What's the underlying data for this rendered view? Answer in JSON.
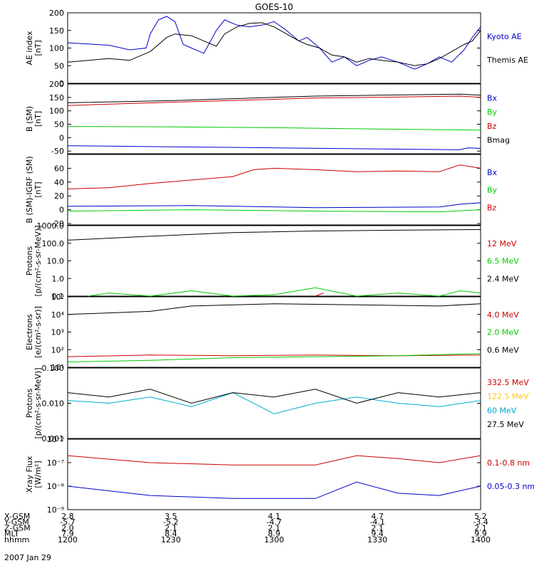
{
  "title": "GOES-10",
  "date_label": "2007 Jan 29",
  "chart_data": [
    {
      "type": "line",
      "id": "ae",
      "ylabel": [
        "AE index",
        "[nT]"
      ],
      "yscale": "linear",
      "ylim": [
        0,
        200
      ],
      "yticks": [
        0,
        50,
        100,
        150,
        200
      ],
      "ytick_labels": [
        "0",
        "50",
        "100",
        "150",
        "200"
      ],
      "series": [
        {
          "name": "Kyoto AE",
          "color": "#0000cc",
          "x": [
            0,
            0.1,
            0.15,
            0.19,
            0.2,
            0.22,
            0.24,
            0.26,
            0.28,
            0.3,
            0.33,
            0.36,
            0.38,
            0.41,
            0.44,
            0.47,
            0.5,
            0.53,
            0.56,
            0.58,
            0.61,
            0.64,
            0.67,
            0.7,
            0.73,
            0.76,
            0.8,
            0.84,
            0.87,
            0.9,
            0.93,
            0.96,
            0.98,
            1
          ],
          "values": [
            115,
            108,
            95,
            100,
            140,
            180,
            190,
            175,
            110,
            100,
            85,
            150,
            180,
            165,
            160,
            165,
            175,
            150,
            120,
            130,
            100,
            60,
            75,
            50,
            65,
            75,
            60,
            40,
            55,
            75,
            60,
            95,
            130,
            160
          ]
        },
        {
          "name": "Themis AE",
          "color": "#000000",
          "x": [
            0,
            0.1,
            0.15,
            0.2,
            0.24,
            0.26,
            0.3,
            0.33,
            0.36,
            0.38,
            0.41,
            0.44,
            0.47,
            0.5,
            0.53,
            0.56,
            0.58,
            0.61,
            0.64,
            0.67,
            0.7,
            0.73,
            0.76,
            0.8,
            0.84,
            0.87,
            0.9,
            0.93,
            0.96,
            0.98,
            1
          ],
          "values": [
            60,
            70,
            65,
            90,
            130,
            140,
            135,
            120,
            105,
            140,
            160,
            170,
            172,
            160,
            140,
            120,
            110,
            100,
            80,
            75,
            60,
            70,
            65,
            60,
            50,
            55,
            70,
            90,
            110,
            120,
            150
          ]
        }
      ],
      "legend": [
        "Kyoto AE",
        "Themis AE"
      ]
    },
    {
      "type": "line",
      "id": "b_sm",
      "ylabel": [
        "B (SM)",
        "[nT]"
      ],
      "yscale": "linear",
      "ylim": [
        -60,
        200
      ],
      "yticks": [
        -50,
        0,
        50,
        100,
        150,
        200
      ],
      "ytick_labels": [
        "-50",
        "0",
        "50",
        "100",
        "150",
        "200"
      ],
      "series": [
        {
          "name": "Bx",
          "color": "#0000cc",
          "x": [
            0,
            0.25,
            0.5,
            0.75,
            0.95,
            0.97,
            1
          ],
          "values": [
            -30,
            -34,
            -38,
            -42,
            -45,
            -38,
            -40
          ]
        },
        {
          "name": "By",
          "color": "#00cc00",
          "x": [
            0,
            0.25,
            0.5,
            0.75,
            1
          ],
          "values": [
            42,
            40,
            37,
            32,
            28
          ]
        },
        {
          "name": "Bz",
          "color": "#cc0000",
          "x": [
            0,
            0.25,
            0.5,
            0.6,
            0.75,
            0.95,
            1
          ],
          "values": [
            120,
            132,
            143,
            148,
            150,
            155,
            150
          ]
        },
        {
          "name": "Bmag",
          "color": "#000000",
          "x": [
            0,
            0.25,
            0.5,
            0.6,
            0.75,
            0.95,
            1
          ],
          "values": [
            130,
            138,
            150,
            155,
            158,
            162,
            158
          ]
        }
      ],
      "legend": [
        "Bx",
        "By",
        "Bz",
        "Bmag"
      ]
    },
    {
      "type": "line",
      "id": "b_minus_igrf",
      "ylabel": [
        "B (SM)-IGRF (SM)",
        "[nT]"
      ],
      "yscale": "linear",
      "ylim": [
        -22,
        80
      ],
      "yticks": [
        -20,
        0,
        20,
        40,
        60
      ],
      "ytick_labels": [
        "-20",
        "0",
        "20",
        "40",
        "60"
      ],
      "series": [
        {
          "name": "Bx",
          "color": "#0000cc",
          "x": [
            0,
            0.3,
            0.6,
            0.9,
            0.95,
            1
          ],
          "values": [
            5,
            6,
            3,
            4,
            8,
            10
          ]
        },
        {
          "name": "By",
          "color": "#00cc00",
          "x": [
            0,
            0.3,
            0.6,
            0.9,
            1
          ],
          "values": [
            -2,
            0,
            -2,
            -3,
            0
          ]
        },
        {
          "name": "Bz",
          "color": "#cc0000",
          "x": [
            0,
            0.1,
            0.2,
            0.3,
            0.4,
            0.45,
            0.5,
            0.6,
            0.7,
            0.8,
            0.9,
            0.95,
            1
          ],
          "values": [
            30,
            32,
            38,
            43,
            48,
            58,
            60,
            58,
            55,
            56,
            55,
            65,
            60
          ]
        }
      ],
      "legend": [
        "Bx",
        "By",
        "Bz"
      ]
    },
    {
      "type": "line",
      "id": "protons_low",
      "ylabel": [
        "Protons",
        "[p/(cm²-s-sr-MeV)]"
      ],
      "yscale": "log",
      "ylim": [
        0.1,
        1000
      ],
      "yticks": [
        0.1,
        1,
        10,
        100,
        1000
      ],
      "ytick_labels": [
        "0.1",
        "1.0",
        "10.0",
        "100.0",
        "1000.0"
      ],
      "series": [
        {
          "name": "12 MeV",
          "color": "#cc0000",
          "x": [
            0.6,
            0.62
          ],
          "values": [
            0.1,
            0.15
          ]
        },
        {
          "name": "6.5 MeV",
          "color": "#00cc00",
          "x": [
            0.05,
            0.1,
            0.2,
            0.3,
            0.4,
            0.5,
            0.6,
            0.7,
            0.8,
            0.9,
            0.95,
            1
          ],
          "values": [
            0.1,
            0.15,
            0.1,
            0.2,
            0.1,
            0.12,
            0.3,
            0.1,
            0.15,
            0.1,
            0.2,
            0.15
          ]
        },
        {
          "name": "2.4 MeV",
          "color": "#000000",
          "x": [
            0,
            0.2,
            0.4,
            0.6,
            0.8,
            1
          ],
          "values": [
            150,
            250,
            400,
            500,
            550,
            600
          ]
        }
      ],
      "legend": [
        "12 MeV",
        "6.5 MeV",
        "2.4 MeV"
      ]
    },
    {
      "type": "line",
      "id": "electrons",
      "ylabel": [
        "Electrons",
        "[e/(cm²-s-sr)]"
      ],
      "yscale": "log",
      "ylim": [
        10,
        100000
      ],
      "yticks": [
        10,
        100,
        1000,
        10000,
        100000
      ],
      "ytick_labels": [
        "10¹",
        "10²",
        "10³",
        "10⁴",
        "10⁵"
      ],
      "series": [
        {
          "name": "4.0 MeV",
          "color": "#cc0000",
          "x": [
            0,
            0.2,
            0.4,
            0.6,
            0.8,
            1
          ],
          "values": [
            40,
            50,
            45,
            50,
            45,
            50
          ]
        },
        {
          "name": "2.0 MeV",
          "color": "#00cc00",
          "x": [
            0,
            0.2,
            0.4,
            0.6,
            0.8,
            1
          ],
          "values": [
            20,
            25,
            35,
            40,
            45,
            60
          ]
        },
        {
          "name": "0.6 MeV",
          "color": "#000000",
          "x": [
            0,
            0.2,
            0.3,
            0.5,
            0.7,
            0.9,
            1
          ],
          "values": [
            10000,
            15000,
            30000,
            40000,
            35000,
            30000,
            40000
          ]
        }
      ],
      "legend": [
        "4.0 MeV",
        "2.0 MeV",
        "0.6 MeV"
      ]
    },
    {
      "type": "line",
      "id": "protons_high",
      "ylabel": [
        "Protons",
        "[p/(cm²-s-sr-MeV)]"
      ],
      "yscale": "log",
      "ylim": [
        0.001,
        0.1
      ],
      "yticks": [
        0.001,
        0.01,
        0.1
      ],
      "ytick_labels": [
        "0.001",
        "0.010",
        "0.100"
      ],
      "series": [
        {
          "name": "332.5 MeV",
          "color": "#cc0000",
          "x": [],
          "values": []
        },
        {
          "name": "122.5 MeV",
          "color": "#ffcc00",
          "x": [],
          "values": []
        },
        {
          "name": "60 MeV",
          "color": "#00aacc",
          "x": [
            0,
            0.1,
            0.2,
            0.3,
            0.4,
            0.5,
            0.6,
            0.7,
            0.8,
            0.9,
            1
          ],
          "values": [
            0.012,
            0.01,
            0.015,
            0.008,
            0.02,
            0.005,
            0.01,
            0.015,
            0.01,
            0.008,
            0.012
          ]
        },
        {
          "name": "27.5 MeV",
          "color": "#000000",
          "x": [
            0,
            0.1,
            0.2,
            0.3,
            0.4,
            0.5,
            0.6,
            0.7,
            0.8,
            0.9,
            1
          ],
          "values": [
            0.02,
            0.015,
            0.025,
            0.01,
            0.02,
            0.015,
            0.025,
            0.01,
            0.02,
            0.015,
            0.02
          ]
        }
      ],
      "legend": [
        "332.5 MeV",
        "122.5 MeV",
        "60 MeV",
        "27.5 MeV"
      ]
    },
    {
      "type": "line",
      "id": "xray",
      "ylabel": [
        "Xray Flux",
        "[W/m²]"
      ],
      "yscale": "log",
      "ylim": [
        1e-09,
        1e-06
      ],
      "yticks": [
        1e-09,
        1e-08,
        1e-07,
        1e-06
      ],
      "ytick_labels": [
        "10⁻⁹",
        "10⁻⁸",
        "10⁻⁷",
        "10⁻⁶"
      ],
      "series": [
        {
          "name": "0.1-0.8 nm",
          "color": "#cc0000",
          "x": [
            0,
            0.2,
            0.4,
            0.6,
            0.7,
            0.8,
            0.9,
            1
          ],
          "values": [
            2e-07,
            1e-07,
            8e-08,
            8e-08,
            2e-07,
            1.5e-07,
            1e-07,
            2e-07
          ]
        },
        {
          "name": "0.05-0.3 nm",
          "color": "#0000cc",
          "x": [
            0,
            0.2,
            0.4,
            0.6,
            0.7,
            0.8,
            0.9,
            1
          ],
          "values": [
            1e-08,
            4e-09,
            3e-09,
            3e-09,
            1.5e-08,
            5e-09,
            4e-09,
            1e-08
          ]
        }
      ],
      "legend": [
        "0.1-0.8 nm",
        "0.05-0.3 nm"
      ]
    }
  ],
  "ephemeris": {
    "row_labels": [
      "X-GSM",
      "Y-GSM",
      "Z-GSM",
      "MLT",
      "hhmm"
    ],
    "columns": [
      [
        "2.8",
        "-5.7",
        "2.0",
        "7.9",
        "1200"
      ],
      [
        "3.5",
        "-5.2",
        "2.1",
        "8.4",
        "1230"
      ],
      [
        "4.1",
        "-4.7",
        "2.1",
        "8.9",
        "1300"
      ],
      [
        "4.7",
        "-4.1",
        "2.1",
        "9.4",
        "1330"
      ],
      [
        "5.2",
        "-3.4",
        "2.1",
        "9.9",
        "1400"
      ]
    ]
  }
}
